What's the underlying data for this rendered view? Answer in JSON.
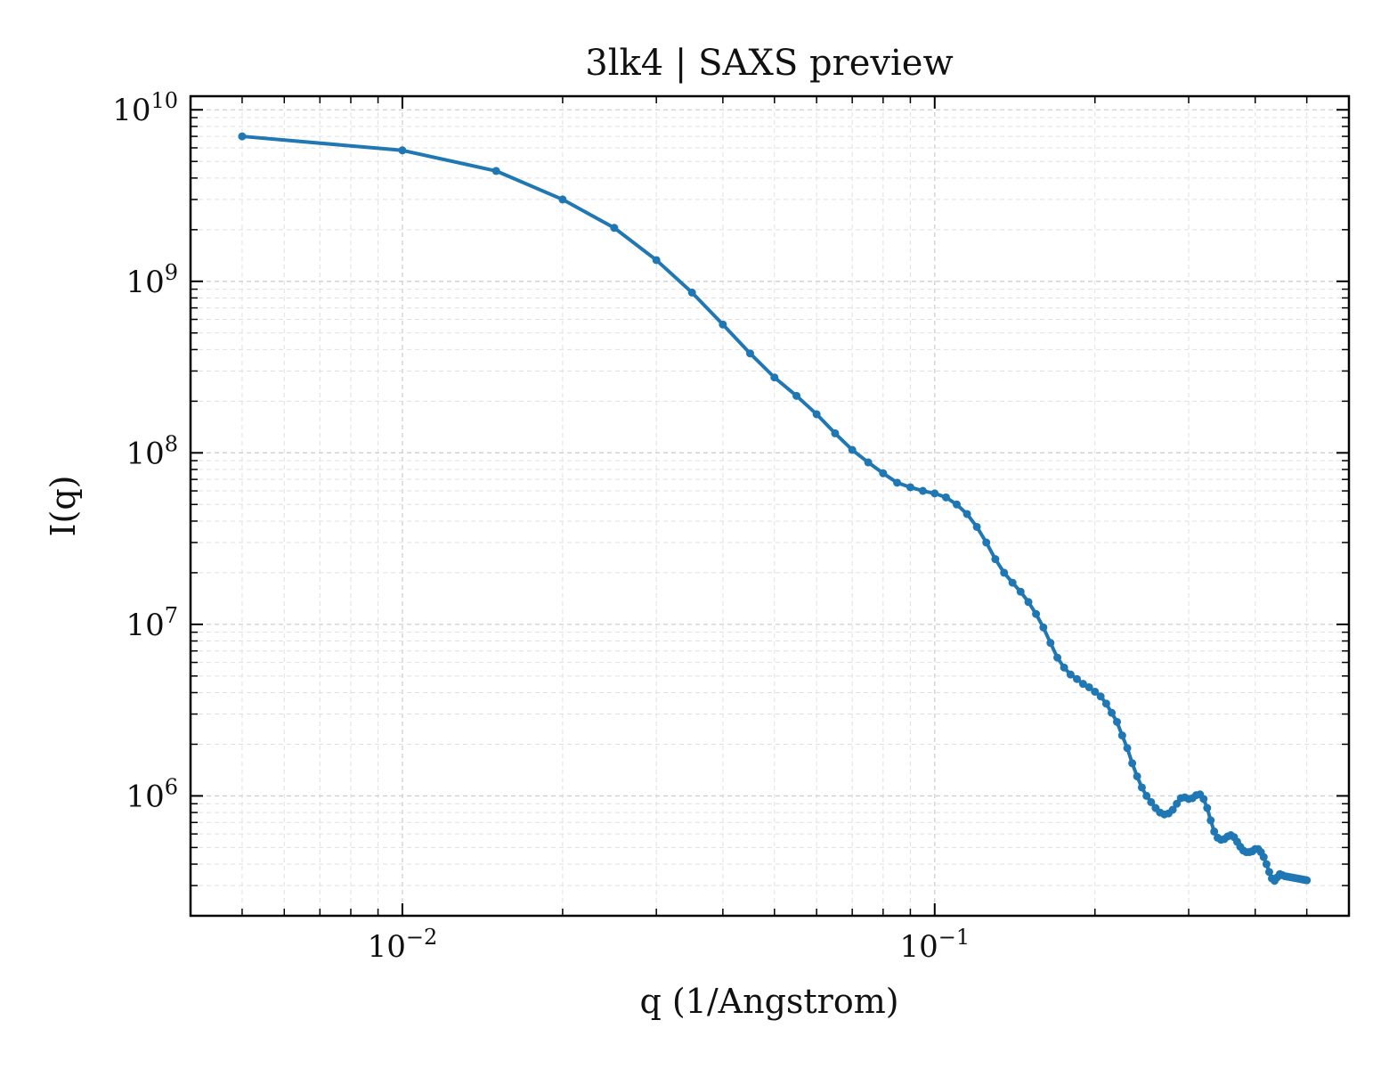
{
  "chart_data": {
    "type": "line",
    "title": "3lk4 | SAXS preview",
    "xlabel": "q (1/Angstrom)",
    "ylabel": "I(q)",
    "xscale": "log",
    "yscale": "log",
    "xlim": [
      0.004,
      0.6
    ],
    "ylim": [
      200000,
      12000000000
    ],
    "grid": true,
    "line_color": "#1f77b4",
    "x_ticks": [
      {
        "value": 0.01,
        "base": "10",
        "exp": "−2"
      },
      {
        "value": 0.1,
        "base": "10",
        "exp": "−1"
      }
    ],
    "y_ticks": [
      {
        "value": 1000000,
        "base": "10",
        "exp": "6"
      },
      {
        "value": 10000000,
        "base": "10",
        "exp": "7"
      },
      {
        "value": 100000000,
        "base": "10",
        "exp": "8"
      },
      {
        "value": 1000000000,
        "base": "10",
        "exp": "9"
      },
      {
        "value": 10000000000,
        "base": "10",
        "exp": "10"
      }
    ],
    "series": [
      {
        "x": [
          0.005,
          0.01,
          0.015,
          0.02,
          0.025,
          0.03,
          0.035,
          0.04,
          0.045,
          0.05,
          0.055,
          0.06,
          0.065,
          0.07,
          0.075,
          0.08,
          0.085,
          0.09,
          0.095,
          0.1,
          0.105,
          0.11,
          0.115,
          0.12,
          0.125,
          0.13,
          0.135,
          0.14,
          0.145,
          0.15,
          0.155,
          0.16,
          0.165,
          0.17,
          0.175,
          0.18,
          0.185,
          0.19,
          0.195,
          0.2,
          0.205,
          0.21,
          0.215,
          0.22,
          0.225,
          0.23,
          0.235,
          0.24,
          0.245,
          0.25,
          0.255,
          0.26,
          0.265,
          0.27,
          0.275,
          0.28,
          0.285,
          0.29,
          0.295,
          0.3,
          0.305,
          0.31,
          0.315,
          0.32,
          0.325,
          0.33,
          0.335,
          0.34,
          0.345,
          0.35,
          0.355,
          0.36,
          0.365,
          0.37,
          0.375,
          0.38,
          0.385,
          0.39,
          0.395,
          0.4,
          0.405,
          0.41,
          0.415,
          0.42,
          0.425,
          0.43,
          0.435,
          0.44,
          0.445,
          0.45,
          0.455,
          0.46,
          0.465,
          0.47,
          0.475,
          0.48,
          0.485,
          0.49,
          0.495,
          0.5
        ],
        "y": [
          7000000000,
          5800000000,
          4400000000,
          3000000000,
          2050000000,
          1330000000,
          860000000,
          560000000,
          380000000,
          275000000,
          215000000,
          168000000,
          130000000,
          104000000,
          88000000,
          76000000,
          67000000,
          63000000,
          60000000,
          58000000,
          55000000,
          50000000,
          44000000,
          37000000,
          30000000,
          24000000,
          20000000,
          17500000,
          15500000,
          13500000,
          11500000,
          9600000,
          7800000,
          6400000,
          5600000,
          5100000,
          4800000,
          4500000,
          4300000,
          4050000,
          3800000,
          3450000,
          3050000,
          2700000,
          2250000,
          1900000,
          1550000,
          1300000,
          1120000,
          1000000,
          920000,
          850000,
          800000,
          780000,
          790000,
          830000,
          900000,
          970000,
          980000,
          960000,
          970000,
          1010000,
          1020000,
          960000,
          850000,
          720000,
          620000,
          570000,
          555000,
          560000,
          580000,
          590000,
          575000,
          540000,
          505000,
          480000,
          470000,
          470000,
          475000,
          490000,
          490000,
          470000,
          440000,
          400000,
          360000,
          330000,
          320000,
          335000,
          350000,
          345000,
          340000,
          338000,
          336000,
          334000,
          332000,
          330000,
          328000,
          326000,
          324000,
          322000
        ]
      }
    ]
  }
}
